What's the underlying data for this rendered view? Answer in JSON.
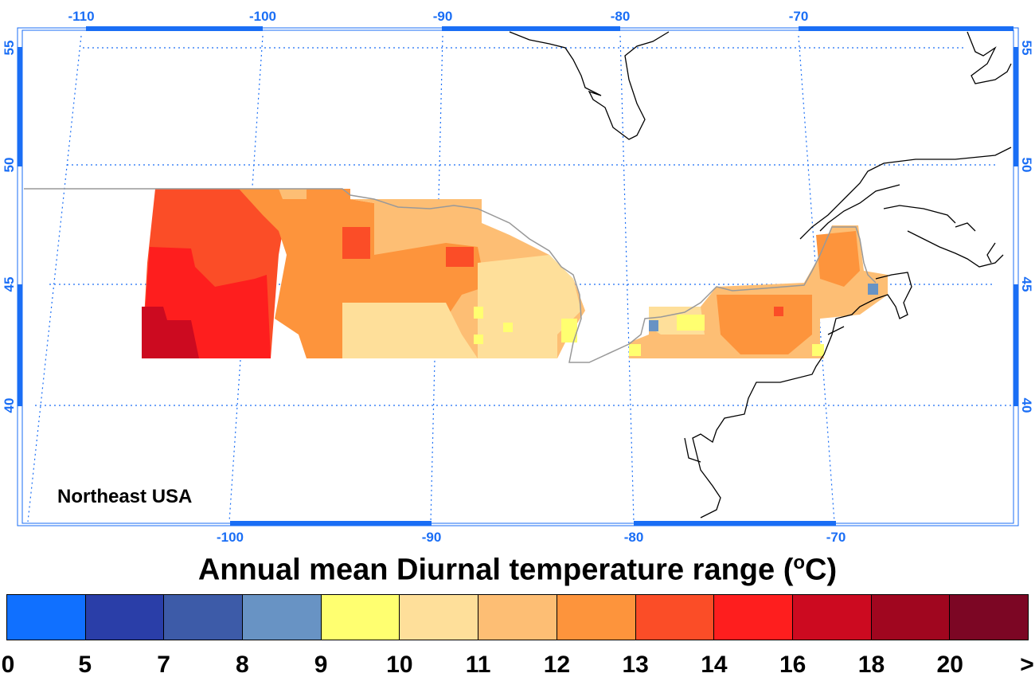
{
  "map": {
    "region_label": "Northeast USA",
    "top_lon_labels": [
      "-110",
      "-100",
      "-90",
      "-80",
      "-70"
    ],
    "bottom_lon_labels": [
      "-100",
      "-90",
      "-80",
      "-70"
    ],
    "lat_labels": [
      "55",
      "50",
      "45",
      "40"
    ],
    "colors": {
      "frame": "#1a6ef5",
      "grid": "#1a6ef5",
      "coast": "#000000",
      "border": "#999999"
    }
  },
  "colorbar": {
    "title_main": "Annual mean Diurnal temperature range (",
    "title_sup": "o",
    "title_end": "C)",
    "tick_labels": [
      "0",
      "5",
      "7",
      "8",
      "9",
      "10",
      "11",
      "12",
      "13",
      "14",
      "16",
      "18",
      "20",
      ">"
    ],
    "colors": [
      "#1070ff",
      "#2a3ea8",
      "#3d5ba8",
      "#6893c4",
      "#ffff70",
      "#fedf9a",
      "#fdbe74",
      "#fd943c",
      "#fb4d27",
      "#fe1e1e",
      "#cc0a20",
      "#a0061f",
      "#7c0624"
    ]
  }
}
